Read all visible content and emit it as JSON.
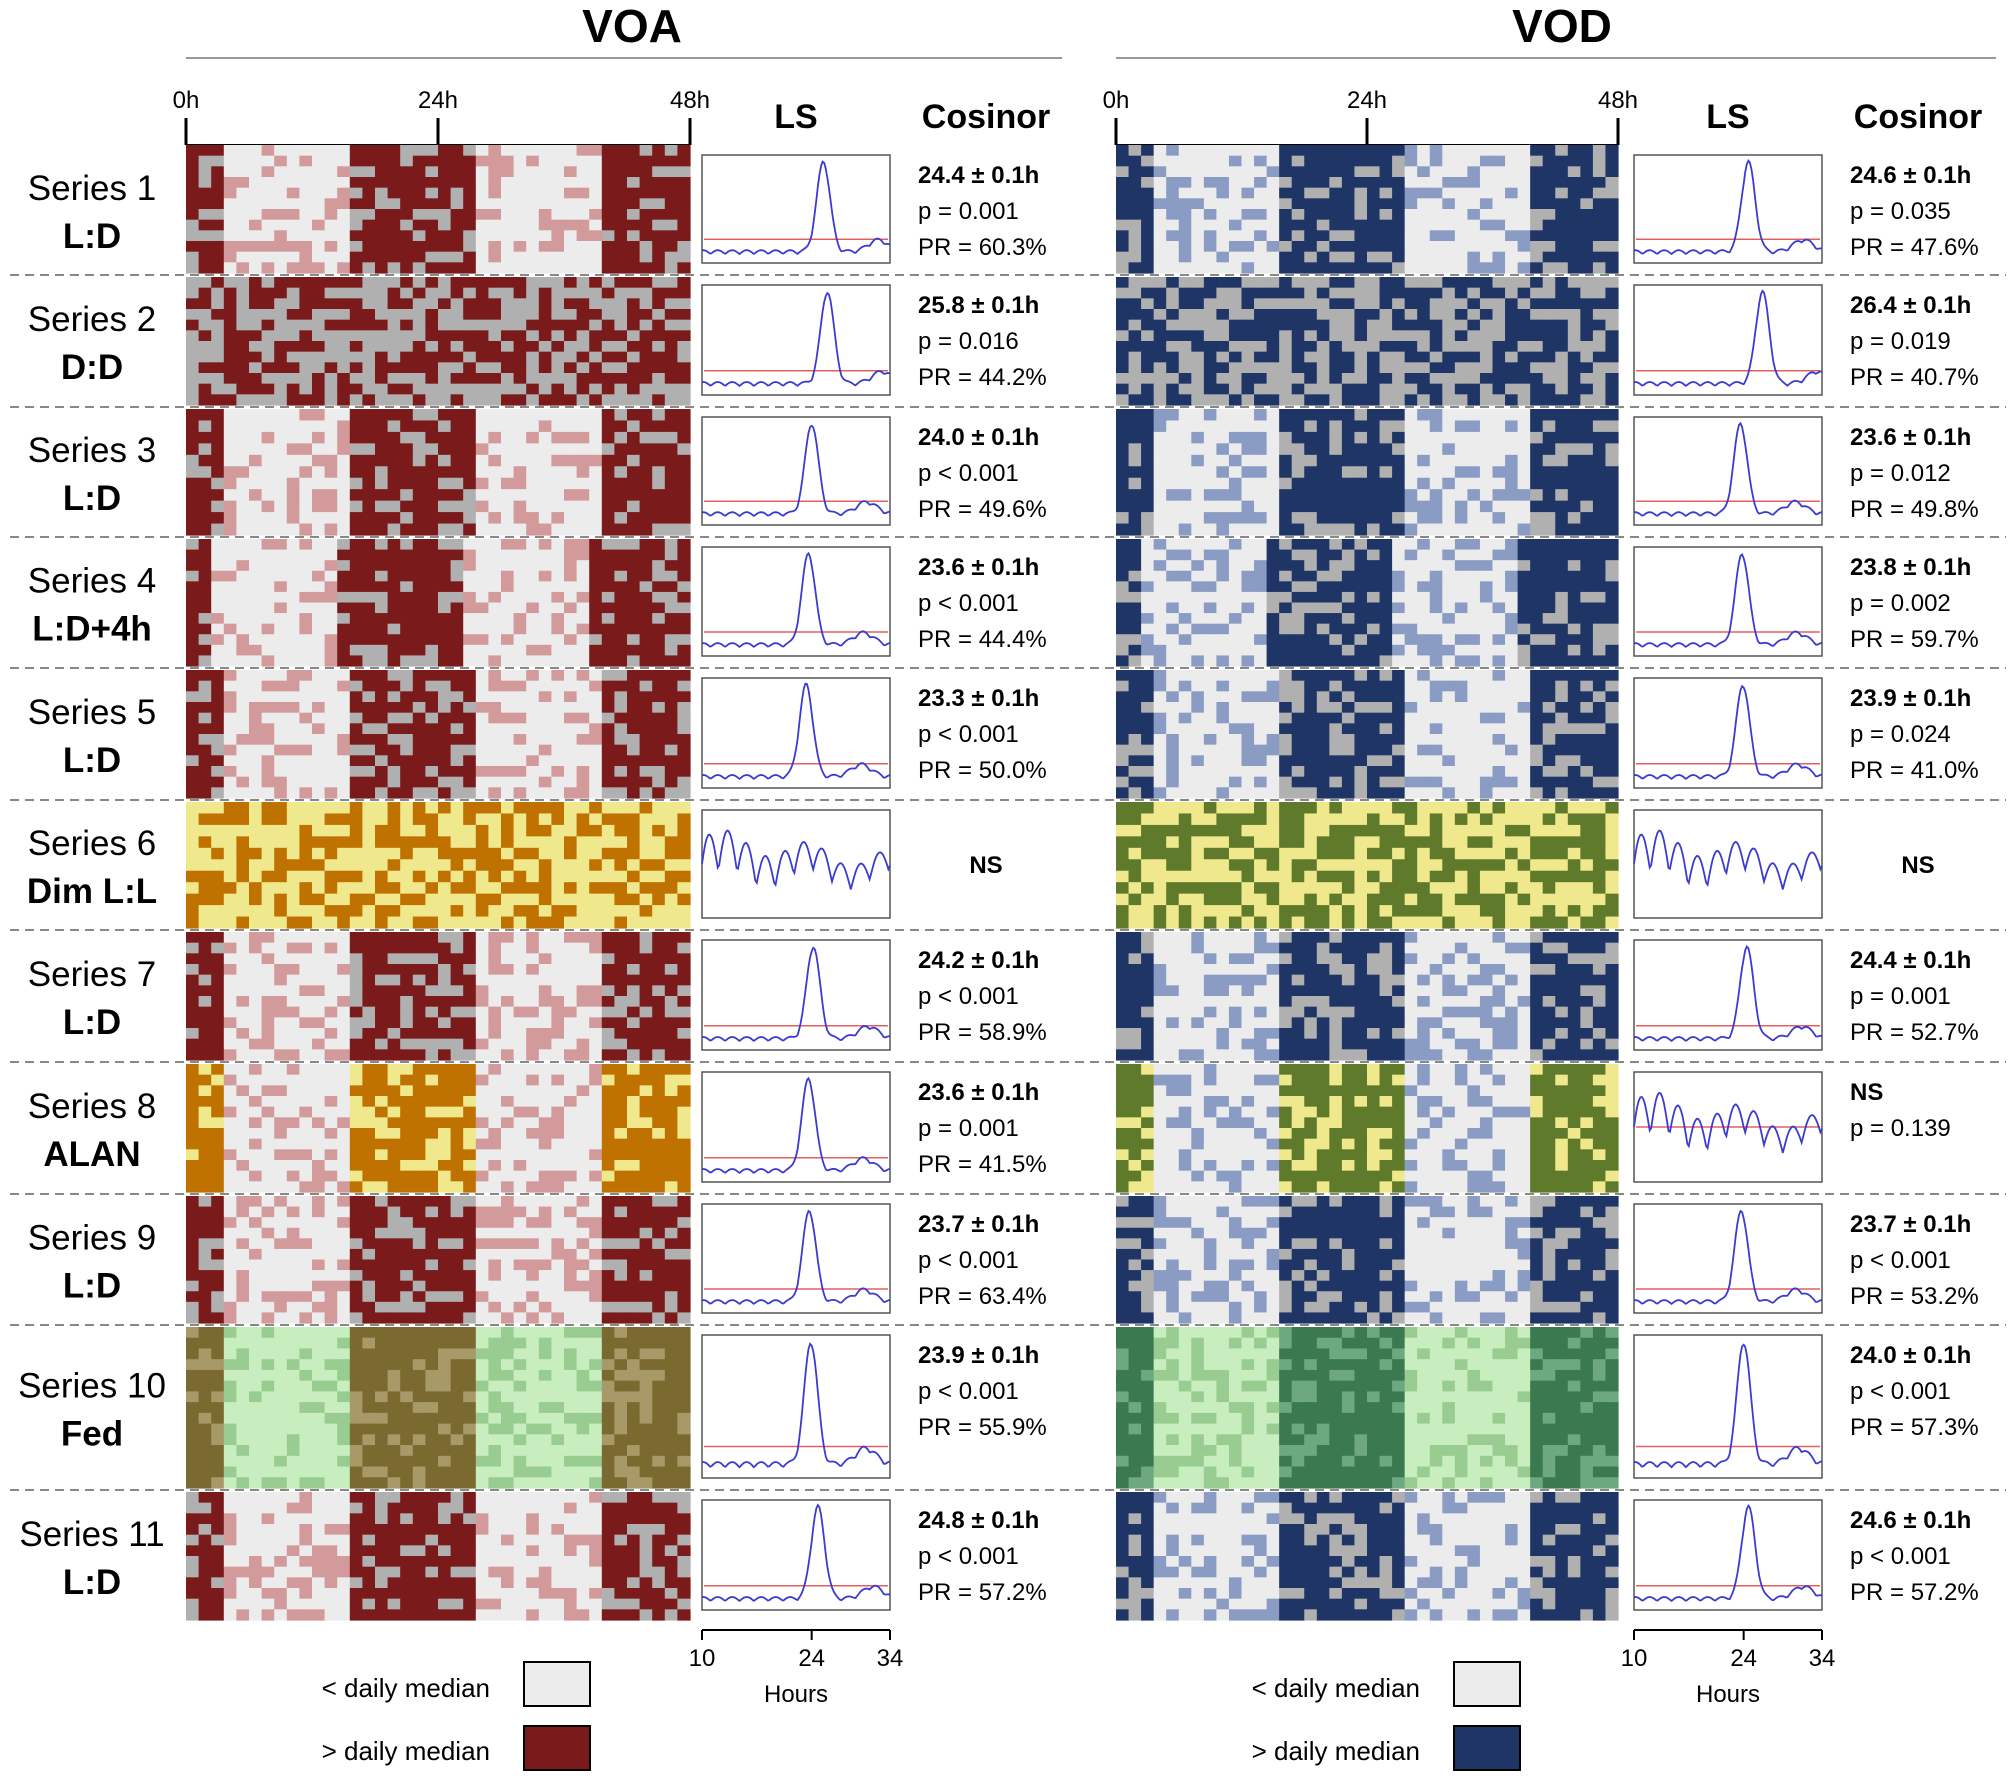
{
  "chart_data": {
    "type": "heatmap",
    "description_labels": {
      "time_ticks": [
        "0h",
        "24h",
        "48h"
      ],
      "ls_header": "LS",
      "cosinor_header": "Cosinor",
      "ls_x_ticks": [
        "10",
        "24",
        "34"
      ],
      "ls_x_label": "Hours",
      "legend_below": "< daily median",
      "legend_above": "> daily median"
    },
    "rows": [
      {
        "name": "Series 1",
        "condition": "L:D",
        "light": "LD"
      },
      {
        "name": "Series 2",
        "condition": "D:D",
        "light": "DD"
      },
      {
        "name": "Series 3",
        "condition": "L:D",
        "light": "LD"
      },
      {
        "name": "Series 4",
        "condition": "L:D+4h",
        "light": "LD4"
      },
      {
        "name": "Series 5",
        "condition": "L:D",
        "light": "LD"
      },
      {
        "name": "Series 6",
        "condition": "Dim L:L",
        "light": "LL"
      },
      {
        "name": "Series 7",
        "condition": "L:D",
        "light": "LD"
      },
      {
        "name": "Series 8",
        "condition": "ALAN",
        "light": "ALAN"
      },
      {
        "name": "Series 9",
        "condition": "L:D",
        "light": "LD"
      },
      {
        "name": "Series 10",
        "condition": "Fed",
        "light": "FED"
      },
      {
        "name": "Series 11",
        "condition": "L:D",
        "light": "LD"
      }
    ],
    "panels": [
      {
        "title": "VOA",
        "colors": {
          "above": "#7b1a1a",
          "below_light": "#ececec",
          "below_dark": "#b0b0b0",
          "above_light": "#d29a9a",
          "ll_above": "#bf7200",
          "ll_below": "#f0e88c",
          "fed_above": "#7a6a30",
          "fed_below": "#c8eec0",
          "fed_mid": "#a89a68",
          "fed_light": "#98cc90",
          "alan_above": "#bf7200",
          "alan_below": "#f0e88c"
        },
        "stats": [
          {
            "period": "24.4 ± 0.1h",
            "p": "p = 0.001",
            "pr": "PR = 60.3%",
            "peak": 25.5
          },
          {
            "period": "25.8 ± 0.1h",
            "p": "p = 0.016",
            "pr": "PR = 44.2%",
            "peak": 26.0
          },
          {
            "period": "24.0 ± 0.1h",
            "p": "p < 0.001",
            "pr": "PR = 49.6%",
            "peak": 24.0
          },
          {
            "period": "23.6 ± 0.1h",
            "p": "p < 0.001",
            "pr": "PR = 44.4%",
            "peak": 23.6
          },
          {
            "period": "23.3 ± 0.1h",
            "p": "p < 0.001",
            "pr": "PR = 50.0%",
            "peak": 23.3
          },
          {
            "period": "NS",
            "p": "",
            "pr": "",
            "peak": null
          },
          {
            "period": "24.2 ± 0.1h",
            "p": "p < 0.001",
            "pr": "PR = 58.9%",
            "peak": 24.2
          },
          {
            "period": "23.6 ± 0.1h",
            "p": "p = 0.001",
            "pr": "PR = 41.5%",
            "peak": 23.6
          },
          {
            "period": "23.7 ± 0.1h",
            "p": "p < 0.001",
            "pr": "PR = 63.4%",
            "peak": 23.7
          },
          {
            "period": "23.9 ± 0.1h",
            "p": "p < 0.001",
            "pr": "PR = 55.9%",
            "peak": 23.9
          },
          {
            "period": "24.8 ± 0.1h",
            "p": "p < 0.001",
            "pr": "PR = 57.2%",
            "peak": 24.8
          }
        ]
      },
      {
        "title": "VOD",
        "colors": {
          "above": "#1f3566",
          "below_light": "#ececec",
          "below_dark": "#b0b0b0",
          "above_light": "#8b9cc4",
          "ll_above": "#5f7a2a",
          "ll_below": "#f0e88c",
          "fed_above": "#3b7a50",
          "fed_below": "#c8eec0",
          "fed_mid": "#6ea880",
          "fed_light": "#98cc90",
          "alan_above": "#5f7a2a",
          "alan_below": "#f0e88c"
        },
        "stats": [
          {
            "period": "24.6 ± 0.1h",
            "p": "p = 0.035",
            "pr": "PR = 47.6%",
            "peak": 24.6
          },
          {
            "period": "26.4 ± 0.1h",
            "p": "p = 0.019",
            "pr": "PR = 40.7%",
            "peak": 26.4
          },
          {
            "period": "23.6 ± 0.1h",
            "p": "p = 0.012",
            "pr": "PR = 49.8%",
            "peak": 23.6
          },
          {
            "period": "23.8 ± 0.1h",
            "p": "p = 0.002",
            "pr": "PR = 59.7%",
            "peak": 23.8
          },
          {
            "period": "23.9 ± 0.1h",
            "p": "p = 0.024",
            "pr": "PR = 41.0%",
            "peak": 23.9
          },
          {
            "period": "NS",
            "p": "",
            "pr": "",
            "peak": null
          },
          {
            "period": "24.4 ± 0.1h",
            "p": "p = 0.001",
            "pr": "PR = 52.7%",
            "peak": 24.4
          },
          {
            "period": "NS",
            "p": "p = 0.139",
            "pr": "",
            "peak": null
          },
          {
            "period": "23.7 ± 0.1h",
            "p": "p < 0.001",
            "pr": "PR = 53.2%",
            "peak": 23.7
          },
          {
            "period": "24.0 ± 0.1h",
            "p": "p < 0.001",
            "pr": "PR = 57.3%",
            "peak": 24.0
          },
          {
            "period": "24.6 ± 0.1h",
            "p": "p < 0.001",
            "pr": "PR = 57.2%",
            "peak": 24.6
          }
        ]
      }
    ],
    "ls_x_range": [
      10,
      34
    ]
  }
}
